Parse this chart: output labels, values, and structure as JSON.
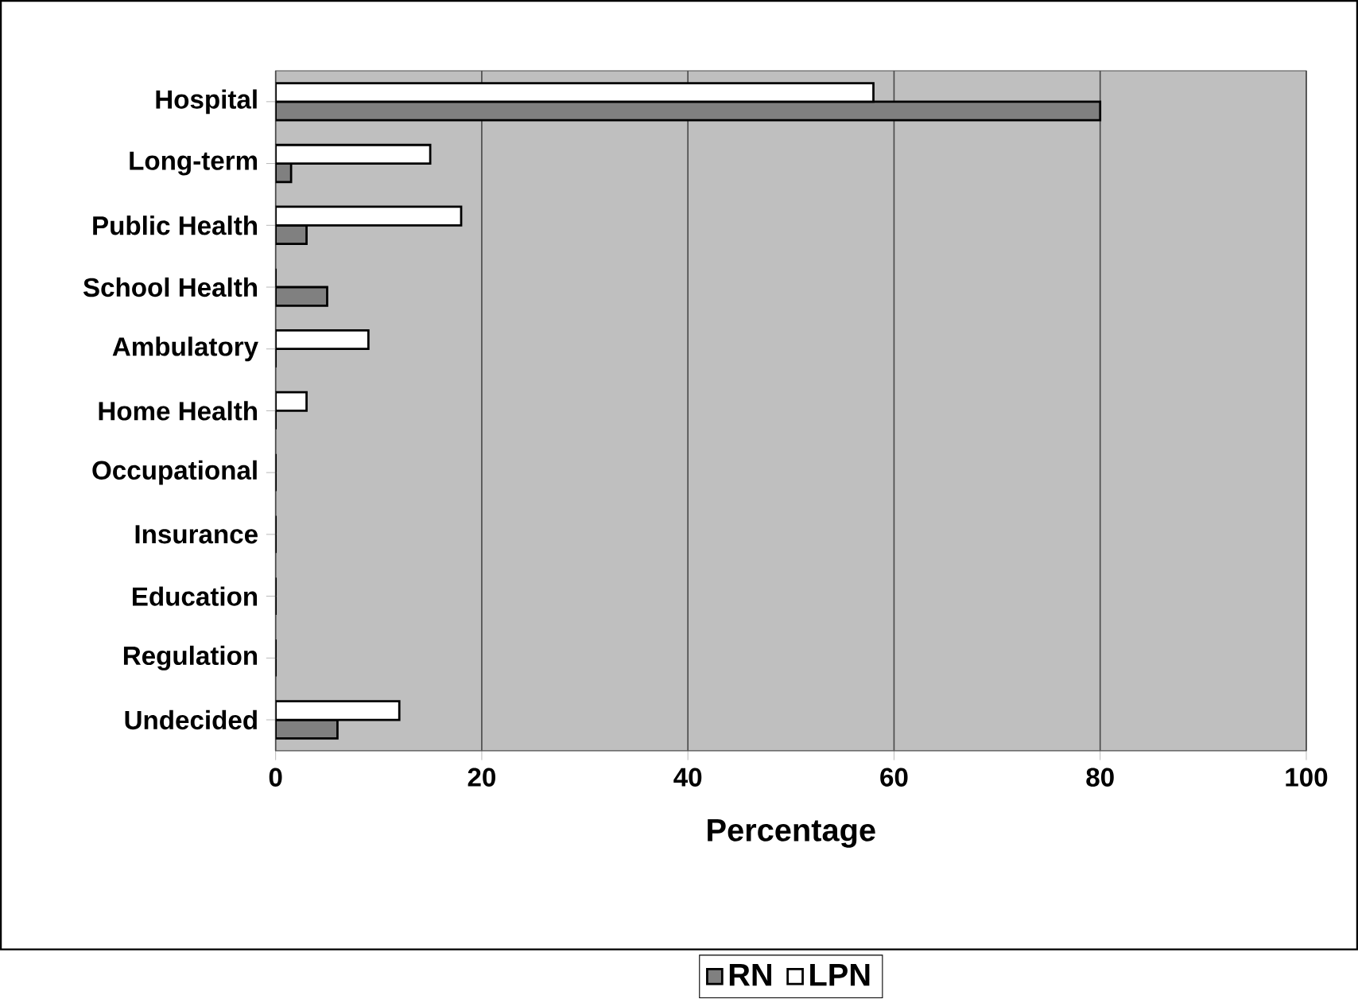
{
  "chart_data": {
    "type": "bar",
    "orientation": "horizontal",
    "xlabel": "Percentage",
    "categories": [
      "Hospital",
      "Long-term",
      "Public Health",
      "School Health",
      "Ambulatory",
      "Home Health",
      "Occupational",
      "Insurance",
      "Education",
      "Regulation",
      "Undecided"
    ],
    "series": [
      {
        "name": "RN",
        "color": "#808080",
        "values": [
          80,
          1.5,
          3,
          5,
          0,
          0,
          0,
          0,
          0,
          0,
          6
        ]
      },
      {
        "name": "LPN",
        "color": "#ffffff",
        "values": [
          58,
          15,
          18,
          0,
          9,
          3,
          0,
          0,
          0,
          0,
          12
        ]
      }
    ],
    "xlim": [
      0,
      100
    ],
    "xticks": [
      0,
      20,
      40,
      60,
      80,
      100
    ],
    "grid": "x",
    "legend": "bottom"
  }
}
